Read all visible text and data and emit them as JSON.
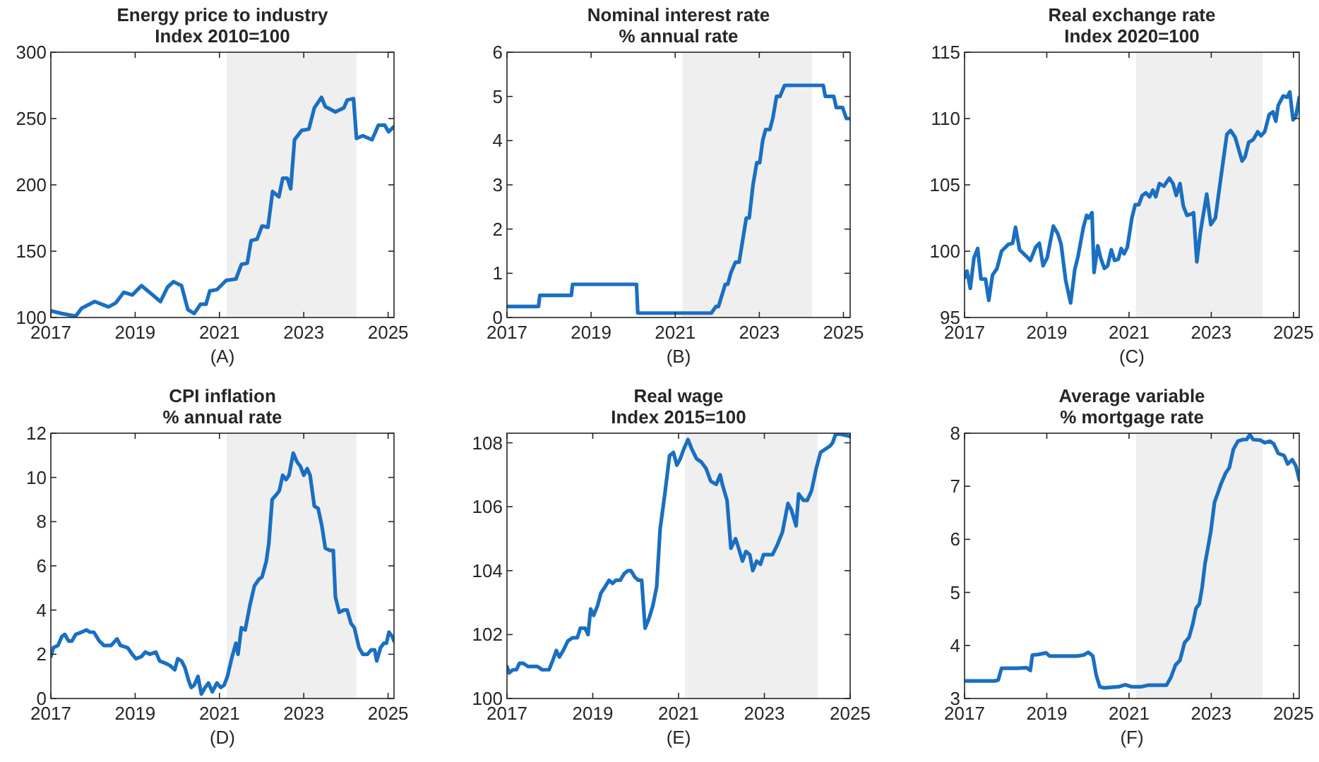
{
  "chart_data": [
    {
      "type": "line",
      "title": "Energy price to industry",
      "subtitle": "Index 2010=100",
      "annotations": [
        "(A)"
      ],
      "xlim": [
        2017,
        2025.14
      ],
      "xticks": [
        2017,
        2019,
        2021,
        2023,
        2025
      ],
      "ylim": [
        100,
        300
      ],
      "yticks": [
        100,
        150,
        200,
        250,
        300
      ],
      "grid": false,
      "bands": [
        {
          "axis": "x",
          "from": 2021.17,
          "to": 2024.25,
          "color": "#efefef"
        }
      ],
      "series": [
        {
          "color": "#1a6fc2",
          "x": [
            2017.0,
            2017.26,
            2017.59,
            2017.73,
            2018.04,
            2018.37,
            2018.54,
            2018.73,
            2018.93,
            2019.15,
            2019.38,
            2019.6,
            2019.77,
            2019.91,
            2020.1,
            2020.25,
            2020.4,
            2020.55,
            2020.68,
            2020.77,
            2020.94,
            2021.16,
            2021.39,
            2021.52,
            2021.66,
            2021.75,
            2021.89,
            2022.01,
            2022.15,
            2022.26,
            2022.41,
            2022.5,
            2022.61,
            2022.69,
            2022.78,
            2022.95,
            2023.12,
            2023.25,
            2023.42,
            2023.51,
            2023.75,
            2023.95,
            2024.03,
            2024.18,
            2024.25,
            2024.4,
            2024.62,
            2024.77,
            2024.92,
            2025.01,
            2025.14
          ],
          "values": [
            105,
            103,
            101,
            107,
            112,
            108,
            111,
            119,
            117,
            124,
            118,
            112,
            123,
            127,
            124,
            106,
            103,
            110,
            110,
            120,
            121,
            128,
            129,
            140,
            141,
            158,
            159,
            169,
            168,
            195,
            191,
            205,
            205,
            197,
            234,
            241,
            242,
            258,
            266,
            259,
            255,
            258,
            264,
            265,
            235,
            237,
            234,
            245,
            245,
            240,
            244
          ]
        }
      ]
    },
    {
      "type": "line",
      "title": "Nominal interest rate",
      "subtitle": "% annual rate",
      "annotations": [
        "(B)"
      ],
      "xlim": [
        2017,
        2025.16
      ],
      "xticks": [
        2017,
        2019,
        2021,
        2023,
        2025
      ],
      "ylim": [
        0,
        6
      ],
      "yticks": [
        0,
        1,
        2,
        3,
        4,
        5,
        6
      ],
      "grid": false,
      "bands": [
        {
          "axis": "x",
          "from": 2021.17,
          "to": 2024.25,
          "color": "#efefef"
        }
      ],
      "series": [
        {
          "color": "#1a6fc2",
          "x": [
            2017.0,
            2017.75,
            2017.78,
            2018.53,
            2018.56,
            2020.08,
            2020.11,
            2021.86,
            2021.97,
            2022.03,
            2022.19,
            2022.25,
            2022.32,
            2022.43,
            2022.52,
            2022.69,
            2022.76,
            2022.85,
            2022.94,
            2023.01,
            2023.08,
            2023.15,
            2023.25,
            2023.32,
            2023.41,
            2023.49,
            2023.6,
            2024.52,
            2024.57,
            2024.77,
            2024.83,
            2024.98,
            2025.07,
            2025.16
          ],
          "values": [
            0.25,
            0.25,
            0.5,
            0.5,
            0.75,
            0.75,
            0.1,
            0.1,
            0.25,
            0.25,
            0.75,
            0.75,
            1.0,
            1.25,
            1.25,
            2.25,
            2.25,
            3.0,
            3.5,
            3.5,
            4.0,
            4.25,
            4.25,
            4.5,
            5.0,
            5.0,
            5.25,
            5.25,
            5.0,
            5.0,
            4.75,
            4.75,
            4.5,
            4.5
          ]
        }
      ]
    },
    {
      "type": "line",
      "title": "Real exchange rate",
      "subtitle": "Index 2020=100",
      "annotations": [
        "(C)"
      ],
      "xlim": [
        2017,
        2025.14
      ],
      "xticks": [
        2017,
        2019,
        2021,
        2023,
        2025
      ],
      "ylim": [
        95,
        115
      ],
      "yticks": [
        95,
        100,
        105,
        110,
        115
      ],
      "grid": false,
      "bands": [
        {
          "axis": "x",
          "from": 2021.17,
          "to": 2024.25,
          "color": "#efefef"
        }
      ],
      "series": [
        {
          "color": "#1a6fc2",
          "x": [
            2017.0,
            2017.06,
            2017.14,
            2017.23,
            2017.32,
            2017.4,
            2017.51,
            2017.59,
            2017.68,
            2017.79,
            2017.9,
            2018.06,
            2018.17,
            2018.24,
            2018.34,
            2018.51,
            2018.6,
            2018.73,
            2018.82,
            2018.91,
            2019.01,
            2019.16,
            2019.27,
            2019.35,
            2019.46,
            2019.58,
            2019.68,
            2019.76,
            2019.89,
            2019.97,
            2020.02,
            2020.1,
            2020.15,
            2020.24,
            2020.31,
            2020.4,
            2020.48,
            2020.57,
            2020.65,
            2020.74,
            2020.81,
            2020.88,
            2020.96,
            2021.07,
            2021.15,
            2021.24,
            2021.32,
            2021.41,
            2021.5,
            2021.58,
            2021.65,
            2021.74,
            2021.85,
            2021.98,
            2022.07,
            2022.15,
            2022.24,
            2022.32,
            2022.41,
            2022.52,
            2022.57,
            2022.65,
            2022.74,
            2022.89,
            2022.99,
            2023.1,
            2023.21,
            2023.38,
            2023.47,
            2023.58,
            2023.75,
            2023.82,
            2023.91,
            2024.02,
            2024.13,
            2024.21,
            2024.3,
            2024.41,
            2024.5,
            2024.57,
            2024.63,
            2024.75,
            2024.84,
            2024.91,
            2024.99,
            2025.06,
            2025.14
          ],
          "values": [
            98.0,
            98.5,
            97.2,
            99.5,
            100.2,
            97.9,
            97.9,
            96.3,
            98.2,
            98.7,
            100.0,
            100.5,
            100.6,
            101.8,
            100.1,
            99.6,
            99.3,
            100.3,
            100.6,
            98.9,
            99.5,
            101.9,
            101.3,
            100.5,
            97.8,
            96.1,
            98.6,
            99.6,
            101.8,
            102.7,
            102.5,
            102.9,
            98.4,
            100.4,
            99.5,
            98.7,
            98.9,
            100.1,
            99.3,
            99.4,
            100.2,
            99.8,
            100.3,
            102.5,
            103.5,
            103.5,
            104.2,
            104.4,
            104.1,
            104.6,
            104.1,
            105.1,
            104.9,
            105.5,
            105.1,
            104.2,
            105.1,
            103.4,
            102.7,
            102.8,
            102.9,
            99.2,
            101.5,
            104.3,
            102.0,
            102.5,
            105.0,
            108.8,
            109.1,
            108.6,
            106.8,
            107.1,
            108.2,
            108.4,
            109.0,
            108.7,
            109.0,
            110.3,
            110.5,
            109.8,
            111.0,
            111.7,
            111.6,
            112.0,
            109.9,
            110.2,
            111.6
          ]
        }
      ]
    },
    {
      "type": "line",
      "title": "CPI inflation",
      "subtitle": "% annual rate",
      "annotations": [
        "(D)"
      ],
      "xlim": [
        2017,
        2025.14
      ],
      "xticks": [
        2017,
        2019,
        2021,
        2023,
        2025
      ],
      "ylim": [
        0,
        12
      ],
      "yticks": [
        0,
        2,
        4,
        6,
        8,
        10,
        12
      ],
      "grid": false,
      "bands": [
        {
          "axis": "x",
          "from": 2021.17,
          "to": 2024.25,
          "color": "#efefef"
        }
      ],
      "series": [
        {
          "color": "#1a6fc2",
          "x": [
            2017.0,
            2017.06,
            2017.17,
            2017.26,
            2017.33,
            2017.42,
            2017.5,
            2017.59,
            2017.73,
            2017.84,
            2017.93,
            2018.02,
            2018.15,
            2018.26,
            2018.43,
            2018.57,
            2018.65,
            2018.82,
            2018.93,
            2019.02,
            2019.15,
            2019.24,
            2019.35,
            2019.49,
            2019.58,
            2019.71,
            2019.82,
            2019.94,
            2020.01,
            2020.1,
            2020.18,
            2020.27,
            2020.33,
            2020.4,
            2020.49,
            2020.57,
            2020.66,
            2020.74,
            2020.83,
            2020.94,
            2021.03,
            2021.11,
            2021.19,
            2021.3,
            2021.39,
            2021.44,
            2021.52,
            2021.61,
            2021.72,
            2021.83,
            2021.94,
            2022.01,
            2022.11,
            2022.17,
            2022.25,
            2022.34,
            2022.42,
            2022.5,
            2022.58,
            2022.65,
            2022.75,
            2022.84,
            2022.92,
            2023.0,
            2023.08,
            2023.15,
            2023.25,
            2023.34,
            2023.43,
            2023.51,
            2023.62,
            2023.7,
            2023.75,
            2023.84,
            2023.95,
            2024.03,
            2024.12,
            2024.2,
            2024.31,
            2024.4,
            2024.51,
            2024.6,
            2024.68,
            2024.73,
            2024.82,
            2024.9,
            2024.96,
            2025.02,
            2025.1,
            2025.14
          ],
          "values": [
            1.9,
            2.3,
            2.4,
            2.8,
            2.9,
            2.6,
            2.6,
            2.9,
            3.0,
            3.1,
            3.0,
            3.0,
            2.6,
            2.4,
            2.4,
            2.7,
            2.4,
            2.3,
            2.0,
            1.8,
            1.9,
            2.1,
            2.0,
            2.1,
            1.7,
            1.6,
            1.5,
            1.3,
            1.8,
            1.7,
            1.4,
            0.8,
            0.5,
            0.6,
            1.0,
            0.2,
            0.5,
            0.7,
            0.3,
            0.7,
            0.5,
            0.6,
            1.0,
            1.9,
            2.5,
            2.0,
            3.2,
            3.1,
            4.2,
            5.1,
            5.4,
            5.5,
            6.2,
            7.0,
            9.0,
            9.2,
            9.4,
            10.1,
            9.9,
            10.1,
            11.1,
            10.7,
            10.5,
            10.1,
            10.4,
            10.1,
            8.7,
            8.6,
            7.8,
            6.8,
            6.7,
            6.7,
            4.6,
            3.9,
            4.0,
            4.0,
            3.4,
            3.2,
            2.3,
            2.0,
            2.0,
            2.2,
            2.2,
            1.7,
            2.3,
            2.5,
            2.5,
            3.0,
            2.8,
            2.6
          ]
        }
      ]
    },
    {
      "type": "line",
      "title": "Real wage",
      "subtitle": "Index 2015=100",
      "annotations": [
        "(E)"
      ],
      "xlim": [
        2017,
        2025
      ],
      "xticks": [
        2017,
        2019,
        2021,
        2023,
        2025
      ],
      "ylim": [
        100,
        108.3
      ],
      "yticks": [
        100,
        102,
        104,
        106,
        108
      ],
      "grid": false,
      "bands": [
        {
          "axis": "x",
          "from": 2021.15,
          "to": 2024.24,
          "color": "#efefef"
        }
      ],
      "series": [
        {
          "color": "#1a6fc2",
          "x": [
            2017.0,
            2017.05,
            2017.14,
            2017.22,
            2017.29,
            2017.38,
            2017.49,
            2017.71,
            2017.82,
            2017.98,
            2018.07,
            2018.15,
            2018.22,
            2018.31,
            2018.42,
            2018.53,
            2018.64,
            2018.71,
            2018.82,
            2018.89,
            2018.95,
            2019.02,
            2019.11,
            2019.19,
            2019.29,
            2019.38,
            2019.46,
            2019.54,
            2019.64,
            2019.73,
            2019.82,
            2019.89,
            2019.98,
            2020.06,
            2020.14,
            2020.22,
            2020.31,
            2020.4,
            2020.49,
            2020.57,
            2020.68,
            2020.79,
            2020.88,
            2020.96,
            2021.04,
            2021.12,
            2021.22,
            2021.31,
            2021.42,
            2021.53,
            2021.64,
            2021.75,
            2021.88,
            2021.97,
            2022.02,
            2022.13,
            2022.22,
            2022.33,
            2022.4,
            2022.49,
            2022.57,
            2022.66,
            2022.73,
            2022.82,
            2022.91,
            2022.98,
            2023.08,
            2023.19,
            2023.3,
            2023.42,
            2023.55,
            2023.63,
            2023.74,
            2023.8,
            2023.91,
            2024.0,
            2024.1,
            2024.21,
            2024.31,
            2024.42,
            2024.53,
            2024.59,
            2024.67,
            2025.0
          ],
          "values": [
            101.0,
            100.8,
            100.9,
            100.9,
            101.1,
            101.1,
            101.0,
            101.0,
            100.9,
            100.9,
            101.2,
            101.5,
            101.3,
            101.5,
            101.8,
            101.9,
            101.9,
            102.2,
            102.2,
            102.0,
            102.8,
            102.6,
            102.9,
            103.3,
            103.5,
            103.7,
            103.6,
            103.7,
            103.7,
            103.9,
            104.0,
            104.0,
            103.8,
            103.7,
            103.7,
            102.2,
            102.5,
            102.9,
            103.5,
            105.3,
            106.4,
            107.6,
            107.7,
            107.3,
            107.5,
            107.8,
            108.1,
            107.8,
            107.5,
            107.4,
            107.2,
            106.8,
            106.7,
            107.0,
            106.7,
            106.2,
            104.7,
            105.0,
            104.7,
            104.3,
            104.6,
            104.5,
            104.0,
            104.3,
            104.2,
            104.5,
            104.5,
            104.5,
            104.8,
            105.2,
            106.1,
            105.9,
            105.4,
            106.4,
            106.2,
            106.2,
            106.5,
            107.2,
            107.7,
            107.8,
            107.9,
            108.0,
            108.3,
            108.2
          ]
        }
      ]
    },
    {
      "type": "line",
      "title": "Average variable",
      "subtitle": "% mortgage rate",
      "annotations": [
        "(F)"
      ],
      "xlim": [
        2017,
        2025.14
      ],
      "xticks": [
        2017,
        2019,
        2021,
        2023,
        2025
      ],
      "ylim": [
        3,
        8
      ],
      "yticks": [
        3,
        4,
        5,
        6,
        7,
        8
      ],
      "grid": false,
      "bands": [
        {
          "axis": "x",
          "from": 2021.17,
          "to": 2024.25,
          "color": "#efefef"
        }
      ],
      "series": [
        {
          "color": "#1a6fc2",
          "x": [
            2017.0,
            2017.73,
            2017.82,
            2017.9,
            2018.29,
            2018.51,
            2018.6,
            2018.65,
            2018.79,
            2018.98,
            2019.07,
            2019.4,
            2019.73,
            2019.9,
            2020.01,
            2020.12,
            2020.2,
            2020.29,
            2020.4,
            2020.74,
            2020.91,
            2021.07,
            2021.29,
            2021.46,
            2021.74,
            2021.91,
            2022.02,
            2022.13,
            2022.24,
            2022.35,
            2022.46,
            2022.55,
            2022.63,
            2022.71,
            2022.78,
            2022.85,
            2022.91,
            2022.99,
            2023.08,
            2023.16,
            2023.24,
            2023.35,
            2023.44,
            2023.54,
            2023.65,
            2023.77,
            2023.86,
            2023.94,
            2024.02,
            2024.19,
            2024.3,
            2024.43,
            2024.52,
            2024.63,
            2024.77,
            2024.86,
            2024.97,
            2025.06,
            2025.14
          ],
          "values": [
            3.33,
            3.33,
            3.35,
            3.57,
            3.57,
            3.58,
            3.53,
            3.82,
            3.83,
            3.86,
            3.8,
            3.8,
            3.8,
            3.82,
            3.87,
            3.8,
            3.45,
            3.22,
            3.2,
            3.22,
            3.26,
            3.22,
            3.22,
            3.25,
            3.25,
            3.25,
            3.4,
            3.63,
            3.72,
            4.05,
            4.15,
            4.4,
            4.7,
            4.78,
            5.1,
            5.55,
            5.8,
            6.15,
            6.7,
            6.87,
            7.05,
            7.25,
            7.35,
            7.7,
            7.85,
            7.88,
            7.88,
            7.97,
            7.88,
            7.87,
            7.82,
            7.85,
            7.8,
            7.62,
            7.58,
            7.42,
            7.5,
            7.38,
            7.12
          ]
        }
      ]
    }
  ]
}
